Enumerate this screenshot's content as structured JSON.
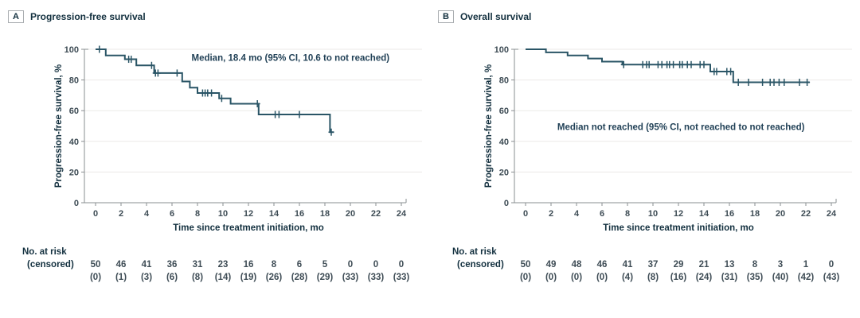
{
  "colors": {
    "curve": "#2a5566",
    "title_text": "#13303f",
    "tick_label": "#3e4c55",
    "axis_line": "#8a8f92",
    "gridline": "#ebeae7",
    "annotation_text": "#1f3f55",
    "panel_box_border": "#a9adb0"
  },
  "chart_data": [
    {
      "type": "line",
      "panel_letter": "A",
      "panel_title": "Progression-free survival",
      "ylabel": "Progression-free survival, %",
      "xlabel": "Time since treatment initiation, mo",
      "xlim": [
        0,
        24
      ],
      "ylim": [
        0,
        100
      ],
      "x_ticks": [
        0,
        2,
        4,
        6,
        8,
        10,
        12,
        14,
        16,
        18,
        20,
        22,
        24
      ],
      "y_ticks": [
        0,
        20,
        40,
        60,
        80,
        100
      ],
      "grid": true,
      "annotation": {
        "text": "Median, 18.4 mo (95% CI, 10.6 to not reached)",
        "anchor_mo": 15.3,
        "anchor_pct": 92.5
      },
      "steps": [
        [
          0,
          100
        ],
        [
          0.8,
          96
        ],
        [
          2.3,
          93.5
        ],
        [
          3.2,
          89.5
        ],
        [
          4.6,
          84.5
        ],
        [
          6.8,
          79
        ],
        [
          7.4,
          75
        ],
        [
          8.0,
          71.5
        ],
        [
          9.7,
          68
        ],
        [
          10.6,
          64.5
        ],
        [
          12.8,
          57.5
        ],
        [
          18.4,
          46
        ]
      ],
      "curve_end_mo": 18.7,
      "censors": [
        [
          0.3,
          100
        ],
        [
          2.6,
          93.5
        ],
        [
          2.8,
          93.5
        ],
        [
          4.4,
          89.5
        ],
        [
          4.7,
          84.5
        ],
        [
          4.9,
          84.5
        ],
        [
          6.4,
          84.5
        ],
        [
          8.4,
          71.5
        ],
        [
          8.6,
          71.5
        ],
        [
          8.8,
          71.5
        ],
        [
          9.1,
          71.5
        ],
        [
          9.9,
          68
        ],
        [
          12.7,
          64.5
        ],
        [
          14.1,
          57.5
        ],
        [
          14.4,
          57.5
        ],
        [
          16.0,
          57.5
        ],
        [
          18.5,
          46
        ]
      ],
      "at_risk": {
        "label1": "No. at risk",
        "label2": "(censored)",
        "risk": [
          "50",
          "46",
          "41",
          "36",
          "31",
          "23",
          "16",
          "8",
          "6",
          "5",
          "0",
          "0",
          "0"
        ],
        "censored": [
          "(0)",
          "(1)",
          "(3)",
          "(6)",
          "(8)",
          "(14)",
          "(19)",
          "(26)",
          "(28)",
          "(29)",
          "(33)",
          "(33)",
          "(33)"
        ]
      }
    },
    {
      "type": "line",
      "panel_letter": "B",
      "panel_title": "Overall survival",
      "ylabel": "Progression-free survival, %",
      "xlabel": "Time since treatment initiation, mo",
      "xlim": [
        0,
        24
      ],
      "ylim": [
        0,
        100
      ],
      "x_ticks": [
        0,
        2,
        4,
        6,
        8,
        10,
        12,
        14,
        16,
        18,
        20,
        22,
        24
      ],
      "y_ticks": [
        0,
        20,
        40,
        60,
        80,
        100
      ],
      "grid": true,
      "annotation": {
        "text": "Median not reached (95% CI, not reached to not reached)",
        "anchor_mo": 12.2,
        "anchor_pct": 47.5
      },
      "steps": [
        [
          0,
          100
        ],
        [
          1.6,
          98
        ],
        [
          3.3,
          96
        ],
        [
          4.9,
          94
        ],
        [
          6.0,
          92
        ],
        [
          7.6,
          90
        ],
        [
          14.5,
          85.5
        ],
        [
          16.3,
          78.5
        ]
      ],
      "curve_end_mo": 22.3,
      "censors": [
        [
          7.7,
          90
        ],
        [
          9.2,
          90
        ],
        [
          9.5,
          90
        ],
        [
          9.7,
          90
        ],
        [
          10.4,
          90
        ],
        [
          10.7,
          90
        ],
        [
          11.1,
          90
        ],
        [
          11.3,
          90
        ],
        [
          11.6,
          90
        ],
        [
          12.1,
          90
        ],
        [
          12.3,
          90
        ],
        [
          12.7,
          90
        ],
        [
          13.0,
          90
        ],
        [
          13.7,
          90
        ],
        [
          14.0,
          90
        ],
        [
          14.8,
          85.5
        ],
        [
          15.0,
          85.5
        ],
        [
          15.8,
          85.5
        ],
        [
          16.1,
          85.5
        ],
        [
          16.7,
          78.5
        ],
        [
          17.5,
          78.5
        ],
        [
          18.6,
          78.5
        ],
        [
          19.2,
          78.5
        ],
        [
          19.5,
          78.5
        ],
        [
          19.9,
          78.5
        ],
        [
          20.3,
          78.5
        ],
        [
          21.5,
          78.5
        ],
        [
          22.1,
          78.5
        ]
      ],
      "at_risk": {
        "label1": "No. at risk",
        "label2": "(censored)",
        "risk": [
          "50",
          "49",
          "48",
          "46",
          "41",
          "37",
          "29",
          "21",
          "13",
          "8",
          "3",
          "1",
          "0"
        ],
        "censored": [
          "(0)",
          "(0)",
          "(0)",
          "(0)",
          "(4)",
          "(8)",
          "(16)",
          "(24)",
          "(31)",
          "(35)",
          "(40)",
          "(42)",
          "(43)"
        ]
      }
    }
  ]
}
